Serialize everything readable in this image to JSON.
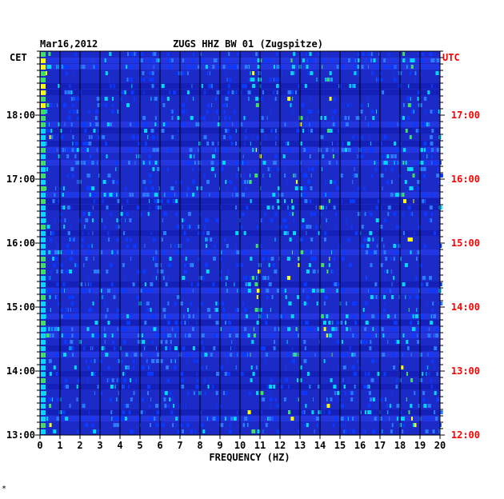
{
  "chart_data": {
    "type": "heatmap",
    "title": "ZUGS HHZ BW 01 (Zugspitze)",
    "date": "Mar16,2012",
    "xlabel": "FREQUENCY (HZ)",
    "left_axis_label": "CET",
    "right_axis_label": "UTC",
    "x_ticks": [
      "0",
      "1",
      "2",
      "3",
      "4",
      "5",
      "6",
      "7",
      "8",
      "9",
      "10",
      "11",
      "12",
      "13",
      "14",
      "15",
      "16",
      "17",
      "18",
      "19",
      "20"
    ],
    "xlim": [
      0,
      20
    ],
    "left_ticks": [
      "18:00",
      "17:00",
      "16:00",
      "15:00",
      "14:00",
      "13:00"
    ],
    "right_ticks": [
      "17:00",
      "16:00",
      "15:00",
      "14:00",
      "13:00",
      "12:00"
    ],
    "time_range_cet": [
      "13:00",
      "18:30"
    ],
    "colors": {
      "background_blue": "#1c2ac8",
      "deep_blue": "#0000a8",
      "cyan": "#00d8ff",
      "green": "#40e060",
      "yellow": "#ffff00",
      "red": "#ff0000",
      "grid": "#000000",
      "utc_text": "#ff0000"
    },
    "footnote": "*"
  }
}
